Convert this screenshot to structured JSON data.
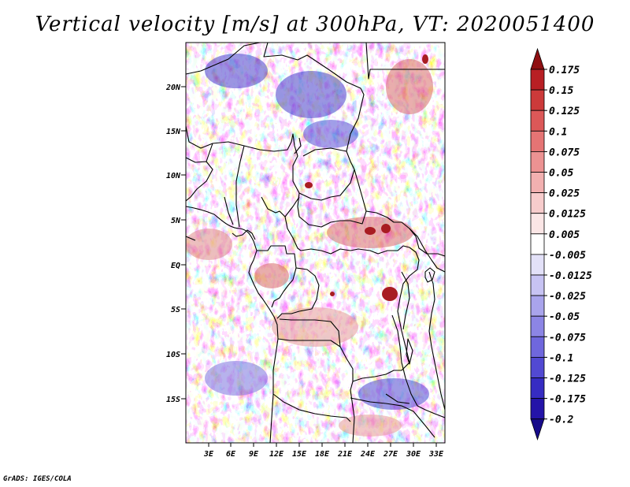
{
  "title": "Vertical velocity [m/s] at 300hPa, VT: 2020051400",
  "footer": "GrADS: IGES/COLA",
  "map": {
    "lat_labels": [
      "20N",
      "15N",
      "10N",
      "5N",
      "EQ",
      "5S",
      "10S",
      "15S"
    ],
    "lon_labels": [
      "3E",
      "6E",
      "9E",
      "12E",
      "15E",
      "18E",
      "21E",
      "24E",
      "27E",
      "30E",
      "33E"
    ],
    "lat_range": [
      -19.5,
      24.5
    ],
    "lon_range": [
      0.5,
      34.5
    ]
  },
  "colorbar": {
    "labels": [
      "0.175",
      "0.15",
      "0.125",
      "0.1",
      "0.075",
      "0.05",
      "0.025",
      "0.0125",
      "0.005",
      "-0.005",
      "-0.0125",
      "-0.025",
      "-0.05",
      "-0.075",
      "-0.1",
      "-0.125",
      "-0.175",
      "-0.2"
    ],
    "colors": [
      "#8f0f12",
      "#b81f24",
      "#cc3a3a",
      "#dc5858",
      "#e57474",
      "#ec9292",
      "#f2b0b0",
      "#f7cccc",
      "#fbe6e6",
      "#ffffff",
      "#e3e1f8",
      "#c7c3f3",
      "#a9a4ec",
      "#8c85e5",
      "#6f67dd",
      "#5249d2",
      "#362cc2",
      "#2414a8",
      "#170b8a"
    ]
  }
}
